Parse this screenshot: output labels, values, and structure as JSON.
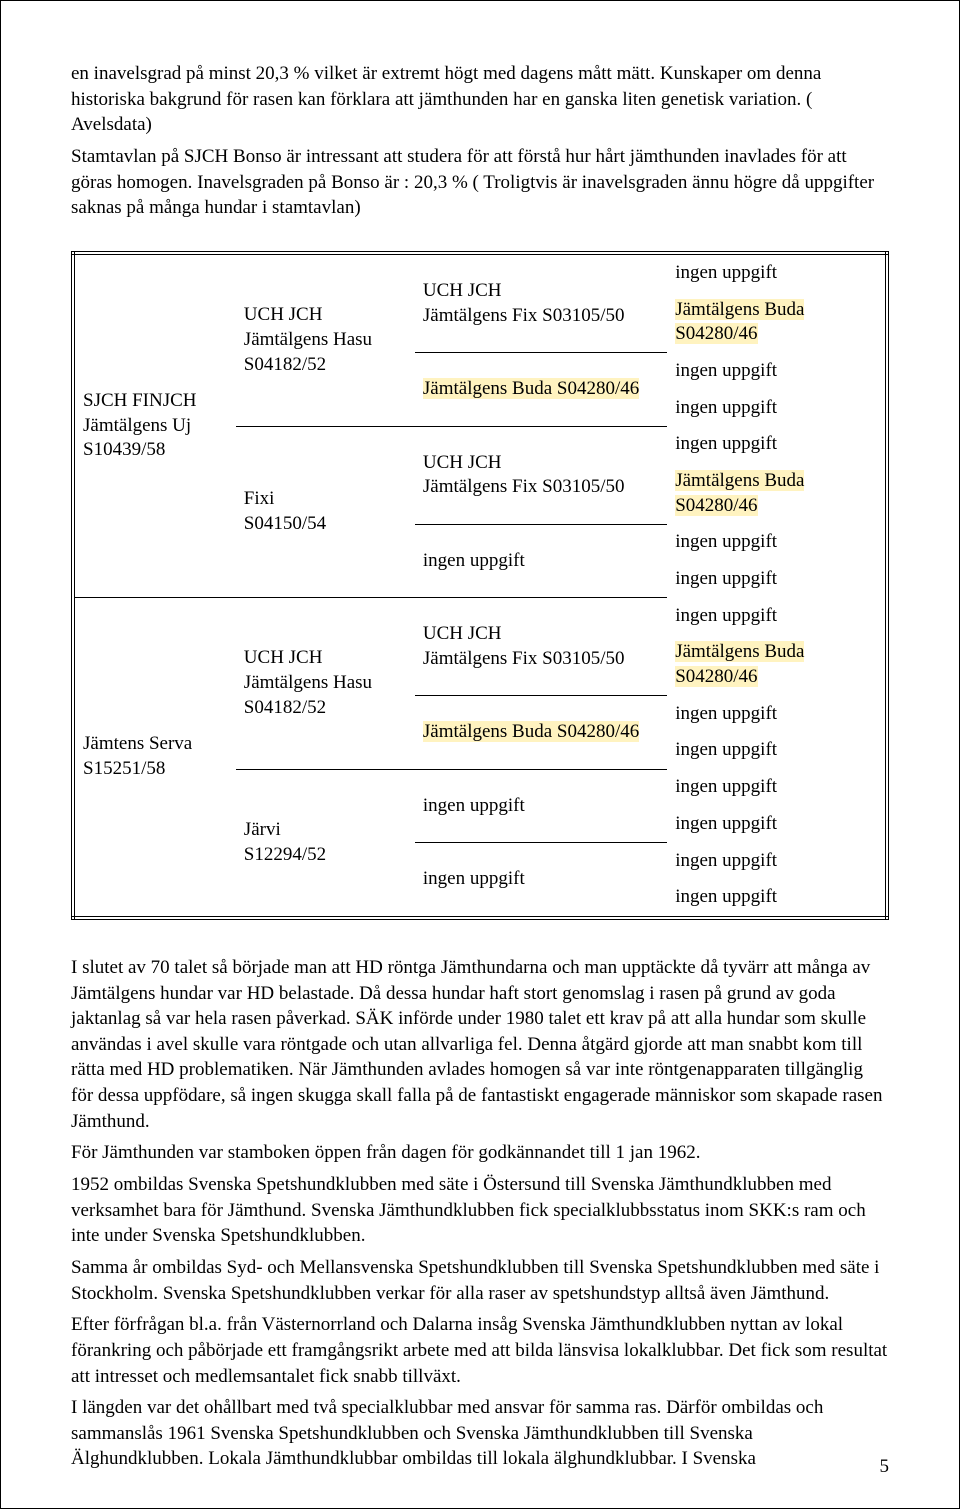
{
  "para1": "en inavelsgrad på minst 20,3 % vilket är extremt högt med dagens mått mätt. Kunskaper om denna historiska bakgrund för rasen kan förklara att jämthunden har en ganska liten genetisk variation. ( Avelsdata)",
  "para2": "Stamtavlan på SJCH Bonso är intressant att studera för att förstå hur hårt jämthunden inavlades för att göras homogen. Inavelsgraden på Bonso är : 20,3 % ( Troligtvis är inavelsgraden ännu högre då uppgifter saknas på många hundar i stamtavlan)",
  "para3": "I slutet av 70 talet så började man att HD röntga Jämthundarna och man upptäckte då tyvärr att många av Jämtälgens hundar var HD belastade. Då dessa hundar haft stort genomslag i rasen på grund av goda jaktanlag så var hela rasen påverkad. SÄK införde under 1980 talet ett krav på att alla hundar som skulle användas i avel skulle vara röntgade och utan allvarliga fel. Denna åtgärd gjorde att man snabbt kom till rätta med HD problematiken. När Jämthunden avlades homogen så var inte röntgenapparaten tillgänglig för dessa uppfödare, så ingen skugga skall falla på de fantastiskt engagerade människor som skapade rasen Jämthund.",
  "para4": "För Jämthunden var stamboken öppen från dagen för godkännandet till 1 jan 1962.",
  "para5": "1952 ombildas Svenska Spetshundklubben med säte i Östersund till Svenska Jämthundklubben med verksamhet bara för Jämthund. Svenska Jämthundklubben fick specialklubbsstatus inom SKK:s ram och inte under Svenska Spetshundklubben.",
  "para6": "Samma år ombildas Syd- och Mellansvenska Spetshundklubben till Svenska Spetshundklubben med säte i Stockholm. Svenska Spetshundklubben verkar för alla raser av spetshundstyp alltså även Jämthund.",
  "para7": "Efter förfrågan bl.a. från Västernorrland och Dalarna insåg Svenska Jämthundklubben nyttan av lokal förankring och påbörjade ett framgångsrikt arbete med att bilda länsvisa lokalklubbar. Det fick som resultat att intresset och medlemsantalet fick snabb tillväxt.",
  "para8": "I längden var det ohållbart med två specialklubbar med ansvar för samma ras. Därför ombildas och sammanslås 1961 Svenska Spetshundklubben och Svenska Jämthundklubben till Svenska Älghundklubben. Lokala Jämthundklubbar ombildas till lokala älghundklubbar. I Svenska",
  "t": {
    "g1": {
      "title": "SJCH FINJCH",
      "name": "Jämtälgens Uj",
      "reg": "S10439/58"
    },
    "g1a": {
      "title": "UCH JCH",
      "name": "Jämtälgens Hasu",
      "reg": "S04182/52"
    },
    "g1b": {
      "name": "Fixi",
      "reg": "S04150/54"
    },
    "g2": {
      "name": "Jämtens Serva",
      "reg": "S15251/58"
    },
    "g2a": {
      "title": "UCH JCH",
      "name": "Jämtälgens Hasu",
      "reg": "S04182/52"
    },
    "g2b": {
      "name": "Järvi",
      "reg": "S12294/52"
    },
    "uchjch": "UCH JCH",
    "fix": "Jämtälgens Fix S03105/50",
    "buda": "Jämtälgens Buda S04280/46",
    "none": "ingen uppgift"
  },
  "pageNumber": "5"
}
